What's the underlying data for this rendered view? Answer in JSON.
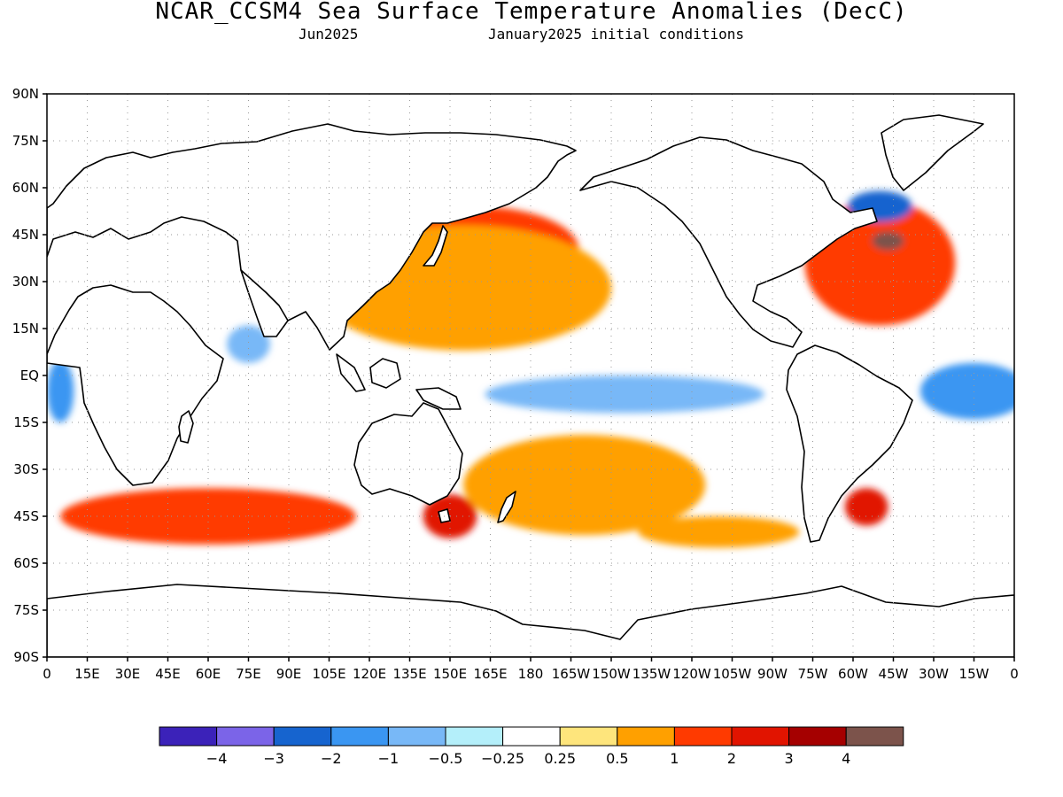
{
  "title": "NCAR_CCSM4 Sea Surface Temperature Anomalies (DecC)",
  "subtitle_left": "Jun2025",
  "subtitle_right": "January2025 initial conditions",
  "map": {
    "lat_ticks": [
      "90N",
      "75N",
      "60N",
      "45N",
      "30N",
      "15N",
      "EQ",
      "15S",
      "30S",
      "45S",
      "60S",
      "75S",
      "90S"
    ],
    "lon_ticks": [
      "0",
      "15E",
      "30E",
      "45E",
      "60E",
      "75E",
      "90E",
      "105E",
      "120E",
      "135E",
      "150E",
      "165E",
      "180",
      "165W",
      "150W",
      "135W",
      "120W",
      "105W",
      "90W",
      "75W",
      "60W",
      "45W",
      "30W",
      "15W",
      "0"
    ],
    "grid": "dotted",
    "projection": "cylindrical-equidistant"
  },
  "colorbar": {
    "colors": [
      "#3b22b9",
      "#7b64e8",
      "#1664cf",
      "#3a96f2",
      "#78b8f7",
      "#b4effa",
      "#ffffff",
      "#fee57c",
      "#ffa000",
      "#ff3a00",
      "#e11400",
      "#a50000",
      "#7c534b"
    ],
    "labels": [
      "−4",
      "−3",
      "−2",
      "−1",
      "−0.5",
      "−0.25",
      "0.25",
      "0.5",
      "1",
      "2",
      "3",
      "4"
    ]
  },
  "anomalies": [
    {
      "lon": 160,
      "lat": 40,
      "value": 1.5,
      "rx": 38,
      "ry": 14,
      "name": "north-pacific-warm"
    },
    {
      "lon": 160,
      "lat": 43,
      "value": 3.5,
      "rx": 10,
      "ry": 3,
      "name": "north-pacific-core"
    },
    {
      "lon": 155,
      "lat": 28,
      "value": 0.7,
      "rx": 55,
      "ry": 20,
      "name": "subtropical-pacific-warm"
    },
    {
      "lon": 215,
      "lat": -6,
      "value": -0.6,
      "rx": 52,
      "ry": 6,
      "name": "equatorial-pacific-cool"
    },
    {
      "lon": 310,
      "lat": 36,
      "value": 1.2,
      "rx": 28,
      "ry": 20,
      "name": "north-atlantic-warm"
    },
    {
      "lon": 313,
      "lat": 43,
      "value": 4.5,
      "rx": 6,
      "ry": 3,
      "name": "gulf-stream-core"
    },
    {
      "lon": 310,
      "lat": 54,
      "value": -2.5,
      "rx": 12,
      "ry": 5,
      "name": "labrador-cool"
    },
    {
      "lon": 345,
      "lat": -5,
      "value": -1.2,
      "rx": 20,
      "ry": 9,
      "name": "equatorial-atlantic-cool"
    },
    {
      "lon": 200,
      "lat": -35,
      "value": 0.8,
      "rx": 45,
      "ry": 16,
      "name": "south-pacific-warm"
    },
    {
      "lon": 150,
      "lat": -45,
      "value": 2.5,
      "rx": 10,
      "ry": 7,
      "name": "tasman-warm"
    },
    {
      "lon": 305,
      "lat": -42,
      "value": 2.5,
      "rx": 8,
      "ry": 6,
      "name": "brazil-malvinas-warm"
    },
    {
      "lon": 60,
      "lat": -45,
      "value": 1.0,
      "rx": 55,
      "ry": 9,
      "name": "southern-indian-warm"
    },
    {
      "lon": 5,
      "lat": -5,
      "value": -1.5,
      "rx": 5,
      "ry": 10,
      "name": "gulf-of-guinea-cool"
    },
    {
      "lon": 75,
      "lat": 10,
      "value": -0.6,
      "rx": 8,
      "ry": 6,
      "name": "arabian-sea-cool"
    },
    {
      "lon": 250,
      "lat": -50,
      "value": 0.7,
      "rx": 30,
      "ry": 5,
      "name": "southeast-pacific-warm"
    }
  ]
}
